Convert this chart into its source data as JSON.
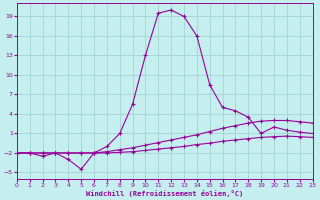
{
  "xlabel": "Windchill (Refroidissement éolien,°C)",
  "bg_color": "#c5eeee",
  "grid_color": "#9ecece",
  "line_color": "#990099",
  "xlim": [
    0,
    23
  ],
  "ylim": [
    -6,
    21
  ],
  "xticks": [
    0,
    1,
    2,
    3,
    4,
    5,
    6,
    7,
    8,
    9,
    10,
    11,
    12,
    13,
    14,
    15,
    16,
    17,
    18,
    19,
    20,
    21,
    22,
    23
  ],
  "yticks": [
    -5,
    -2,
    1,
    4,
    7,
    10,
    13,
    16,
    19
  ],
  "curve1_x": [
    0,
    1,
    2,
    3,
    4,
    5,
    6,
    7,
    8,
    9,
    10,
    11,
    12,
    13,
    14,
    15,
    16,
    17,
    18,
    19,
    20,
    21,
    22,
    23
  ],
  "curve1_y": [
    -2.0,
    -2.0,
    -2.5,
    -2.0,
    -3.0,
    -4.5,
    -2.0,
    -1.0,
    1.0,
    5.5,
    13.0,
    19.5,
    20.0,
    19.0,
    16.0,
    8.5,
    5.0,
    4.5,
    3.5,
    1.0,
    2.0,
    1.5,
    1.2,
    1.0
  ],
  "curve2_x": [
    0,
    1,
    2,
    3,
    4,
    5,
    6,
    7,
    8,
    9,
    10,
    11,
    12,
    13,
    14,
    15,
    16,
    17,
    18,
    19,
    20,
    21,
    22,
    23
  ],
  "curve2_y": [
    -2.0,
    -2.0,
    -2.0,
    -2.0,
    -2.0,
    -2.0,
    -2.0,
    -1.8,
    -1.5,
    -1.2,
    -0.8,
    -0.4,
    0.0,
    0.4,
    0.8,
    1.3,
    1.8,
    2.2,
    2.6,
    2.9,
    3.0,
    3.0,
    2.8,
    2.6
  ],
  "curve3_x": [
    0,
    1,
    2,
    3,
    4,
    5,
    6,
    7,
    8,
    9,
    10,
    11,
    12,
    13,
    14,
    15,
    16,
    17,
    18,
    19,
    20,
    21,
    22,
    23
  ],
  "curve3_y": [
    -2.0,
    -2.0,
    -2.0,
    -2.0,
    -2.0,
    -2.0,
    -2.0,
    -2.0,
    -1.9,
    -1.8,
    -1.6,
    -1.4,
    -1.2,
    -1.0,
    -0.7,
    -0.5,
    -0.2,
    0.0,
    0.2,
    0.4,
    0.5,
    0.6,
    0.5,
    0.4
  ],
  "figsize": [
    3.2,
    2.0
  ],
  "dpi": 100,
  "tick_labelsize": 4.5,
  "xlabel_fontsize": 5.0,
  "lw": 0.8,
  "ms": 2.5
}
